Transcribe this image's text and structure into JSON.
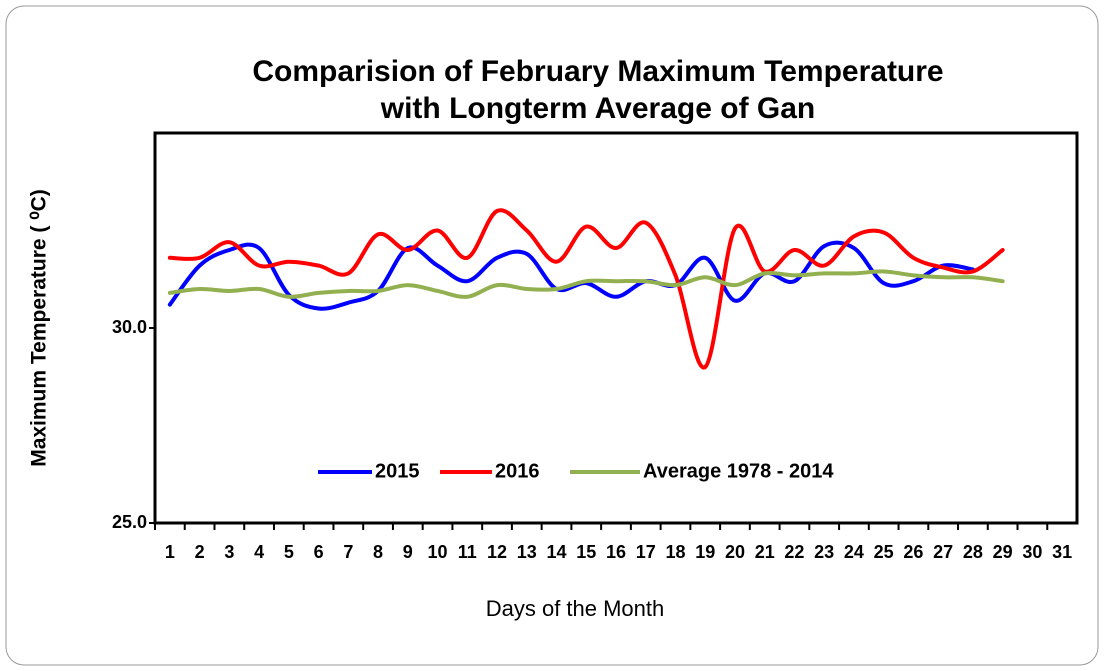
{
  "chart_data": {
    "type": "line",
    "title": [
      "Comparision of February Maximum Temperature",
      "with Longterm Average of Gan"
    ],
    "x_label": "Days of the Month",
    "y_label": "Maximum Temperature ( ⁰C)",
    "categories": [
      "1",
      "2",
      "3",
      "4",
      "5",
      "6",
      "7",
      "8",
      "9",
      "10",
      "11",
      "12",
      "13",
      "14",
      "15",
      "16",
      "17",
      "18",
      "19",
      "20",
      "21",
      "22",
      "23",
      "24",
      "25",
      "26",
      "27",
      "28",
      "29",
      "30",
      "31"
    ],
    "series": [
      {
        "name": "2015",
        "color": "#0000ff",
        "values": [
          30.6,
          31.6,
          32.0,
          32.05,
          30.85,
          30.5,
          30.65,
          30.95,
          32.05,
          31.6,
          31.2,
          31.8,
          31.9,
          31.0,
          31.15,
          30.8,
          31.2,
          31.1,
          31.8,
          30.7,
          31.4,
          31.2,
          32.1,
          32.05,
          31.15,
          31.2,
          31.6,
          31.5,
          null,
          null,
          null
        ]
      },
      {
        "name": "2016",
        "color": "#ff0000",
        "values": [
          31.8,
          31.8,
          32.2,
          31.6,
          31.7,
          31.6,
          31.4,
          32.4,
          32.0,
          32.5,
          31.8,
          33.0,
          32.5,
          31.7,
          32.6,
          32.05,
          32.7,
          31.35,
          29.0,
          32.55,
          31.45,
          32.0,
          31.6,
          32.35,
          32.45,
          31.8,
          31.55,
          31.45,
          32.0,
          null,
          null
        ]
      },
      {
        "name": "Average 1978 - 2014",
        "color": "#92b050",
        "values": [
          30.9,
          31.0,
          30.95,
          31.0,
          30.8,
          30.9,
          30.95,
          30.95,
          31.1,
          30.95,
          30.8,
          31.1,
          31.0,
          31.0,
          31.2,
          31.2,
          31.2,
          31.1,
          31.3,
          31.1,
          31.4,
          31.35,
          31.4,
          31.4,
          31.45,
          31.35,
          31.3,
          31.3,
          31.2,
          null,
          null
        ]
      }
    ],
    "ylim": [
      25,
      35
    ],
    "yticks": [
      {
        "value": 25,
        "label": "25.0"
      },
      {
        "value": 30,
        "label": "30.0"
      }
    ],
    "grid": false,
    "legend": "bottom"
  }
}
